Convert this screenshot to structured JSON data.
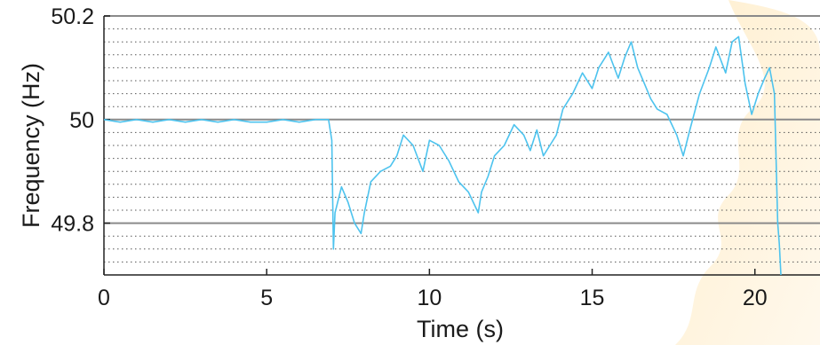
{
  "chart_data": {
    "type": "line",
    "title": "",
    "xlabel": "Time (s)",
    "ylabel": "Frequency (Hz)",
    "xlim": [
      0,
      22
    ],
    "ylim": [
      49.7,
      50.2
    ],
    "x_ticks": [
      0,
      5,
      10,
      15,
      20
    ],
    "x_tick_labels": [
      "0",
      "5",
      "10",
      "15",
      "20"
    ],
    "y_ticks": [
      49.8,
      50,
      50.2
    ],
    "y_tick_labels": [
      "49.8",
      "50",
      "50.2"
    ],
    "major_grid_y": [
      49.8,
      50,
      50.2
    ],
    "minor_grid_y": [
      49.725,
      49.75,
      49.775,
      49.825,
      49.85,
      49.875,
      49.9,
      49.925,
      49.95,
      49.975,
      50.025,
      50.05,
      50.075,
      50.1,
      50.125,
      50.15,
      50.175
    ],
    "grid": true,
    "series": [
      {
        "color": "#4dc3ee",
        "x": [
          0,
          0.5,
          1,
          1.5,
          2,
          2.5,
          3,
          3.5,
          4,
          4.5,
          5,
          5.5,
          6,
          6.5,
          6.9,
          7.0,
          7.05,
          7.1,
          7.3,
          7.5,
          7.7,
          7.9,
          8.0,
          8.2,
          8.5,
          8.8,
          9.0,
          9.2,
          9.5,
          9.8,
          10.0,
          10.3,
          10.6,
          10.9,
          11.2,
          11.5,
          11.6,
          11.8,
          12.0,
          12.3,
          12.6,
          12.9,
          13.1,
          13.3,
          13.5,
          13.7,
          13.9,
          14.1,
          14.4,
          14.7,
          15.0,
          15.2,
          15.5,
          15.8,
          16.0,
          16.2,
          16.4,
          16.6,
          16.8,
          17.0,
          17.3,
          17.6,
          17.8,
          18.0,
          18.3,
          18.6,
          18.8,
          19.1,
          19.3,
          19.5,
          19.7,
          19.9,
          20.1,
          20.3,
          20.45,
          20.6,
          20.7,
          20.75,
          20.8
        ],
        "values": [
          50.0,
          49.995,
          50.0,
          49.995,
          50.0,
          49.995,
          50.0,
          49.995,
          50.0,
          49.995,
          49.995,
          50.0,
          49.995,
          50.0,
          50.0,
          49.96,
          49.75,
          49.82,
          49.87,
          49.84,
          49.8,
          49.78,
          49.82,
          49.88,
          49.9,
          49.91,
          49.93,
          49.97,
          49.95,
          49.9,
          49.96,
          49.95,
          49.92,
          49.88,
          49.86,
          49.82,
          49.86,
          49.89,
          49.93,
          49.95,
          49.99,
          49.97,
          49.94,
          49.98,
          49.93,
          49.95,
          49.97,
          50.02,
          50.05,
          50.09,
          50.06,
          50.1,
          50.13,
          50.08,
          50.12,
          50.15,
          50.1,
          50.07,
          50.04,
          50.02,
          50.01,
          49.97,
          49.93,
          49.98,
          50.05,
          50.1,
          50.14,
          50.09,
          50.15,
          50.16,
          50.07,
          50.01,
          50.05,
          50.08,
          50.1,
          50.05,
          49.8,
          49.76,
          49.7
        ]
      }
    ]
  }
}
